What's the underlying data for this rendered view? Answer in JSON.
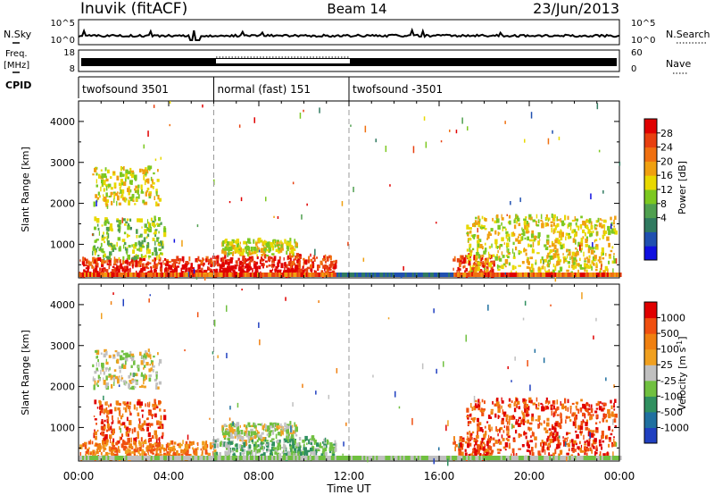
{
  "header": {
    "station": "Inuvik (fitACF)",
    "beam": "Beam 14",
    "date": "23/Jun/2013"
  },
  "status_panels": {
    "nsky_label": "N.Sky",
    "nsky_ticks": [
      "10^5",
      "10^0"
    ],
    "nsearch_label": "N.Search",
    "nsearch_ticks": [
      "10^5",
      "10^0"
    ],
    "freq_label": "Freq.",
    "freq_unit": "[MHz]",
    "freq_ticks": [
      "18",
      "8"
    ],
    "nave_label": "Nave",
    "nave_ticks": [
      "60",
      "0"
    ],
    "cpid_label": "CPID",
    "cpid_segments": [
      {
        "label": "twofsound 3501",
        "start_h": 0,
        "end_h": 6
      },
      {
        "label": "normal (fast) 151",
        "start_h": 6,
        "end_h": 12
      },
      {
        "label": "twofsound -3501",
        "start_h": 12,
        "end_h": 24
      }
    ]
  },
  "chart_data": [
    {
      "type": "heatmap",
      "name": "power",
      "ylabel": "Slant Range [km]",
      "ylim": [
        180,
        4500
      ],
      "xlim_hours": [
        0,
        24
      ],
      "y_ticks": [
        "1000",
        "2000",
        "3000",
        "4000"
      ],
      "y_tick_values": [
        1000,
        2000,
        3000,
        4000
      ],
      "colorbar": {
        "label": "Power [dB]",
        "ticks": [
          "28",
          "24",
          "20",
          "16",
          "12",
          "8",
          "4"
        ],
        "colors": [
          "#1010e0",
          "#2050b0",
          "#307a60",
          "#50a050",
          "#7cc820",
          "#e8d800",
          "#f0a010",
          "#f07010",
          "#e84010",
          "#e00000"
        ]
      },
      "echo_regions": [
        {
          "start_h": 0.0,
          "end_h": 6.0,
          "range_min": 180,
          "range_max": 600,
          "level": 8
        },
        {
          "start_h": 0.6,
          "end_h": 3.8,
          "range_min": 600,
          "range_max": 1600,
          "level": 4
        },
        {
          "start_h": 0.6,
          "end_h": 3.6,
          "range_min": 1900,
          "range_max": 2850,
          "level": 5
        },
        {
          "start_h": 5.9,
          "end_h": 9.8,
          "range_min": 180,
          "range_max": 650,
          "level": 9
        },
        {
          "start_h": 6.3,
          "end_h": 9.7,
          "range_min": 700,
          "range_max": 1050,
          "level": 5
        },
        {
          "start_h": 9.3,
          "end_h": 11.4,
          "range_min": 180,
          "range_max": 700,
          "level": 8
        },
        {
          "start_h": 16.6,
          "end_h": 18.4,
          "range_min": 180,
          "range_max": 700,
          "level": 8
        },
        {
          "start_h": 17.2,
          "end_h": 23.8,
          "range_min": 250,
          "range_max": 1650,
          "level": 5
        }
      ]
    },
    {
      "type": "heatmap",
      "name": "velocity",
      "ylabel": "Slant Range [km]",
      "xlabel": "Time UT",
      "ylim": [
        180,
        4500
      ],
      "xlim_hours": [
        0,
        24
      ],
      "x_ticks": [
        "00:00",
        "04:00",
        "08:00",
        "12:00",
        "16:00",
        "20:00",
        "00:00"
      ],
      "y_ticks": [
        "1000",
        "2000",
        "3000",
        "4000"
      ],
      "y_tick_values": [
        1000,
        2000,
        3000,
        4000
      ],
      "colorbar": {
        "label": "Velocity [m s",
        "label_sup": "-1",
        "label_end": "]",
        "ticks": [
          "1000",
          "500",
          "100",
          "25",
          "-25",
          "-100",
          "-500",
          "-1000"
        ],
        "colors": [
          "#2040c0",
          "#2070a0",
          "#309060",
          "#70c040",
          "#c0c0c0",
          "#f0a020",
          "#f08010",
          "#f05010",
          "#e00000"
        ]
      },
      "echo_regions": [
        {
          "start_h": 0.0,
          "end_h": 6.0,
          "range_min": 180,
          "range_max": 600,
          "level": 6
        },
        {
          "start_h": 0.6,
          "end_h": 3.8,
          "range_min": 600,
          "range_max": 1600,
          "level": 7
        },
        {
          "start_h": 0.6,
          "end_h": 3.6,
          "range_min": 1900,
          "range_max": 2850,
          "level": 4
        },
        {
          "start_h": 5.9,
          "end_h": 9.8,
          "range_min": 180,
          "range_max": 650,
          "level": 3
        },
        {
          "start_h": 6.3,
          "end_h": 9.7,
          "range_min": 650,
          "range_max": 1050,
          "level": 4
        },
        {
          "start_h": 9.3,
          "end_h": 11.4,
          "range_min": 180,
          "range_max": 700,
          "level": 3
        },
        {
          "start_h": 16.6,
          "end_h": 18.4,
          "range_min": 180,
          "range_max": 700,
          "level": 7
        },
        {
          "start_h": 17.2,
          "end_h": 23.8,
          "range_min": 250,
          "range_max": 1650,
          "level": 7
        }
      ]
    }
  ]
}
